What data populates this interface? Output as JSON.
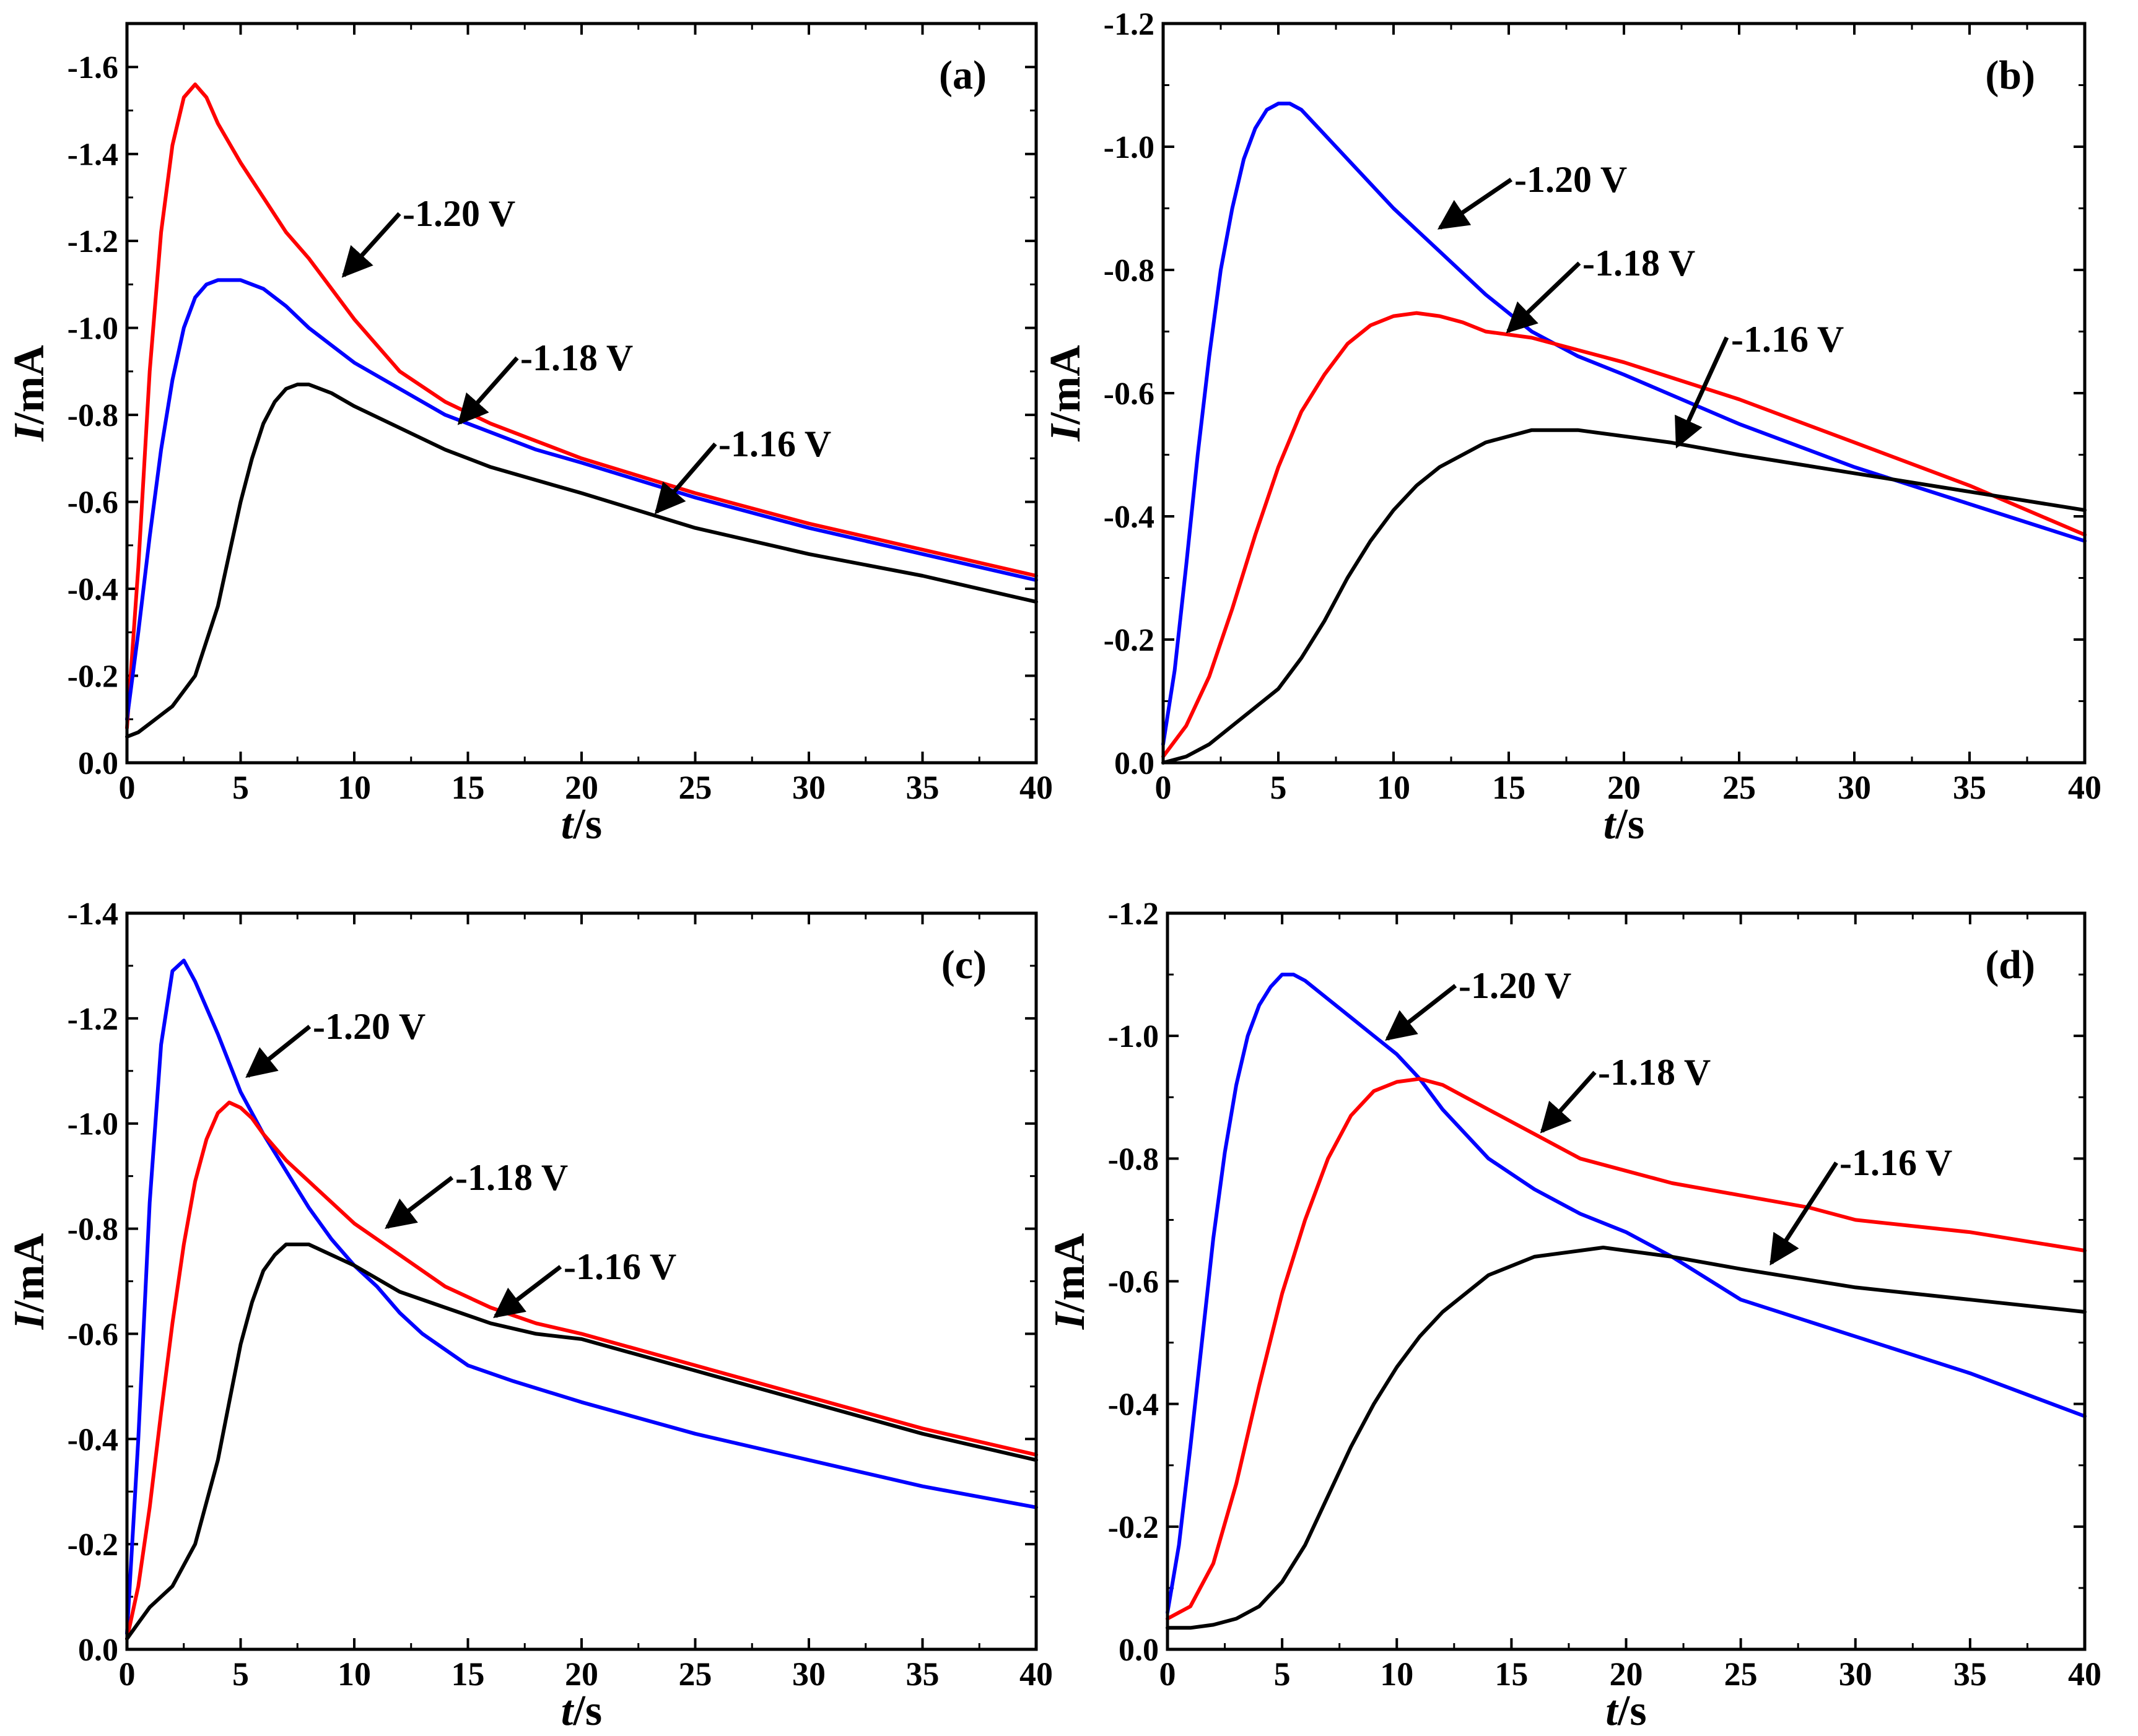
{
  "figure": {
    "description_panels": [
      "a",
      "b",
      "c",
      "d"
    ]
  },
  "colors": {
    "-1.20 V": "#ff0000",
    "-1.18 V": "#0000ff",
    "-1.16 V": "#000000",
    "axis": "#000000"
  },
  "chart_data": [
    {
      "type": "line",
      "panel_label": "(a)",
      "xlabel_italic": "t",
      "xlabel_unit": "/s",
      "ylabel_italic": "I",
      "ylabel_unit": "/mA",
      "xlim": [
        0,
        40
      ],
      "ylim": [
        0.0,
        -1.7
      ],
      "xticks": [
        0,
        5,
        10,
        15,
        20,
        25,
        30,
        35,
        40
      ],
      "yticks": [
        0.0,
        -0.2,
        -0.4,
        -0.6,
        -0.8,
        -1.0,
        -1.2,
        -1.4,
        -1.6
      ],
      "ytick_labels": [
        "0.0",
        "-0.2",
        "-0.4",
        "-0.6",
        "-0.8",
        "-1.0",
        "-1.2",
        "-1.4",
        "-1.6"
      ],
      "series": [
        {
          "name": "-1.20 V",
          "color": "#ff0000",
          "x": [
            0,
            0.5,
            1,
            1.5,
            2,
            2.5,
            3,
            3.5,
            4,
            5,
            6,
            7,
            8,
            9,
            10,
            12,
            14,
            16,
            18,
            20,
            25,
            30,
            35,
            40
          ],
          "y": [
            -0.08,
            -0.45,
            -0.9,
            -1.22,
            -1.42,
            -1.53,
            -1.56,
            -1.53,
            -1.47,
            -1.38,
            -1.3,
            -1.22,
            -1.16,
            -1.09,
            -1.02,
            -0.9,
            -0.83,
            -0.78,
            -0.74,
            -0.7,
            -0.62,
            -0.55,
            -0.49,
            -0.43
          ]
        },
        {
          "name": "-1.18 V",
          "color": "#0000ff",
          "x": [
            0,
            0.5,
            1,
            1.5,
            2,
            2.5,
            3,
            3.5,
            4,
            5,
            6,
            7,
            8,
            9,
            10,
            12,
            14,
            16,
            18,
            20,
            25,
            30,
            35,
            40
          ],
          "y": [
            -0.1,
            -0.3,
            -0.52,
            -0.72,
            -0.88,
            -1.0,
            -1.07,
            -1.1,
            -1.11,
            -1.11,
            -1.09,
            -1.05,
            -1.0,
            -0.96,
            -0.92,
            -0.86,
            -0.8,
            -0.76,
            -0.72,
            -0.69,
            -0.61,
            -0.54,
            -0.48,
            -0.42
          ]
        },
        {
          "name": "-1.16 V",
          "color": "#000000",
          "x": [
            0,
            0.5,
            1,
            2,
            3,
            4,
            4.5,
            5,
            5.5,
            6,
            6.5,
            7,
            7.5,
            8,
            9,
            10,
            12,
            14,
            16,
            18,
            20,
            25,
            30,
            35,
            40
          ],
          "y": [
            -0.06,
            -0.07,
            -0.09,
            -0.13,
            -0.2,
            -0.36,
            -0.48,
            -0.6,
            -0.7,
            -0.78,
            -0.83,
            -0.86,
            -0.87,
            -0.87,
            -0.85,
            -0.82,
            -0.77,
            -0.72,
            -0.68,
            -0.65,
            -0.62,
            -0.54,
            -0.48,
            -0.43,
            -0.37
          ]
        }
      ],
      "annotations": [
        {
          "text": "-1.20 V",
          "target_series": "-1.20 V"
        },
        {
          "text": "-1.18 V",
          "target_series": "-1.18 V"
        },
        {
          "text": "-1.16 V",
          "target_series": "-1.16 V"
        }
      ]
    },
    {
      "type": "line",
      "panel_label": "(b)",
      "xlabel_italic": "t",
      "xlabel_unit": "/s",
      "ylabel_italic": "I",
      "ylabel_unit": "/mA",
      "xlim": [
        0,
        40
      ],
      "ylim": [
        0.0,
        -1.2
      ],
      "xticks": [
        0,
        5,
        10,
        15,
        20,
        25,
        30,
        35,
        40
      ],
      "yticks": [
        0.0,
        -0.2,
        -0.4,
        -0.6,
        -0.8,
        -1.0,
        -1.2
      ],
      "ytick_labels": [
        "0.0",
        "-0.2",
        "-0.4",
        "-0.6",
        "-0.8",
        "-1.0",
        "-1.2"
      ],
      "series": [
        {
          "name": "-1.20 V",
          "color": "#0000ff",
          "x": [
            0,
            0.5,
            1,
            1.5,
            2,
            2.5,
            3,
            3.5,
            4,
            4.5,
            5,
            5.5,
            6,
            7,
            8,
            9,
            10,
            12,
            14,
            16,
            18,
            20,
            25,
            30,
            35,
            40
          ],
          "y": [
            -0.03,
            -0.15,
            -0.32,
            -0.5,
            -0.66,
            -0.8,
            -0.9,
            -0.98,
            -1.03,
            -1.06,
            -1.07,
            -1.07,
            -1.06,
            -1.02,
            -0.98,
            -0.94,
            -0.9,
            -0.83,
            -0.76,
            -0.7,
            -0.66,
            -0.63,
            -0.55,
            -0.48,
            -0.42,
            -0.36
          ]
        },
        {
          "name": "-1.18 V",
          "color": "#ff0000",
          "x": [
            0,
            1,
            2,
            3,
            4,
            5,
            6,
            7,
            8,
            9,
            10,
            11,
            12,
            13,
            14,
            16,
            18,
            20,
            25,
            30,
            35,
            40
          ],
          "y": [
            -0.01,
            -0.06,
            -0.14,
            -0.25,
            -0.37,
            -0.48,
            -0.57,
            -0.63,
            -0.68,
            -0.71,
            -0.725,
            -0.73,
            -0.725,
            -0.715,
            -0.7,
            -0.69,
            -0.67,
            -0.65,
            -0.59,
            -0.52,
            -0.45,
            -0.37
          ]
        },
        {
          "name": "-1.16 V",
          "color": "#000000",
          "x": [
            0,
            1,
            2,
            3,
            4,
            5,
            6,
            7,
            8,
            9,
            10,
            11,
            12,
            14,
            16,
            17,
            18,
            20,
            22,
            25,
            30,
            35,
            40
          ],
          "y": [
            0.0,
            -0.01,
            -0.03,
            -0.06,
            -0.09,
            -0.12,
            -0.17,
            -0.23,
            -0.3,
            -0.36,
            -0.41,
            -0.45,
            -0.48,
            -0.52,
            -0.54,
            -0.54,
            -0.54,
            -0.53,
            -0.52,
            -0.5,
            -0.47,
            -0.44,
            -0.41
          ]
        }
      ],
      "annotations": [
        {
          "text": "-1.20 V",
          "target_series": "-1.20 V"
        },
        {
          "text": "-1.18 V",
          "target_series": "-1.18 V"
        },
        {
          "text": "-1.16 V",
          "target_series": "-1.16 V"
        }
      ]
    },
    {
      "type": "line",
      "panel_label": "(c)",
      "xlabel_italic": "t",
      "xlabel_unit": "/s",
      "ylabel_italic": "I",
      "ylabel_unit": "/mA",
      "xlim": [
        0,
        40
      ],
      "ylim": [
        0.0,
        -1.4
      ],
      "xticks": [
        0,
        5,
        10,
        15,
        20,
        25,
        30,
        35,
        40
      ],
      "yticks": [
        0.0,
        -0.2,
        -0.4,
        -0.6,
        -0.8,
        -1.0,
        -1.2,
        -1.4
      ],
      "ytick_labels": [
        "0.0",
        "-0.2",
        "-0.4",
        "-0.6",
        "-0.8",
        "-1.0",
        "-1.2",
        "-1.4"
      ],
      "series": [
        {
          "name": "-1.20 V",
          "color": "#0000ff",
          "x": [
            0,
            0.5,
            1,
            1.5,
            2,
            2.5,
            3,
            4,
            5,
            6,
            7,
            8,
            9,
            10,
            11,
            12,
            13,
            14,
            15,
            17,
            20,
            25,
            30,
            35,
            40
          ],
          "y": [
            -0.03,
            -0.4,
            -0.85,
            -1.15,
            -1.29,
            -1.31,
            -1.27,
            -1.17,
            -1.06,
            -0.98,
            -0.91,
            -0.84,
            -0.78,
            -0.73,
            -0.69,
            -0.64,
            -0.6,
            -0.57,
            -0.54,
            -0.51,
            -0.47,
            -0.41,
            -0.36,
            -0.31,
            -0.27
          ]
        },
        {
          "name": "-1.18 V",
          "color": "#ff0000",
          "x": [
            0,
            0.5,
            1,
            1.5,
            2,
            2.5,
            3,
            3.5,
            4,
            4.5,
            5,
            5.5,
            6,
            7,
            8,
            9,
            10,
            12,
            14,
            16,
            18,
            20,
            25,
            30,
            35,
            40
          ],
          "y": [
            -0.02,
            -0.12,
            -0.27,
            -0.45,
            -0.62,
            -0.77,
            -0.89,
            -0.97,
            -1.02,
            -1.04,
            -1.03,
            -1.01,
            -0.98,
            -0.93,
            -0.89,
            -0.85,
            -0.81,
            -0.75,
            -0.69,
            -0.65,
            -0.62,
            -0.6,
            -0.54,
            -0.48,
            -0.42,
            -0.37
          ]
        },
        {
          "name": "-1.16 V",
          "color": "#000000",
          "x": [
            0,
            0.5,
            1,
            2,
            3,
            4,
            4.5,
            5,
            5.5,
            6,
            6.5,
            7,
            7.5,
            8,
            9,
            10,
            12,
            14,
            16,
            18,
            20,
            25,
            30,
            35,
            40
          ],
          "y": [
            -0.02,
            -0.05,
            -0.08,
            -0.12,
            -0.2,
            -0.36,
            -0.47,
            -0.58,
            -0.66,
            -0.72,
            -0.75,
            -0.77,
            -0.77,
            -0.77,
            -0.75,
            -0.73,
            -0.68,
            -0.65,
            -0.62,
            -0.6,
            -0.59,
            -0.53,
            -0.47,
            -0.41,
            -0.36
          ]
        }
      ],
      "annotations": [
        {
          "text": "-1.20 V",
          "target_series": "-1.20 V"
        },
        {
          "text": "-1.18 V",
          "target_series": "-1.18 V"
        },
        {
          "text": "-1.16 V",
          "target_series": "-1.16 V"
        }
      ]
    },
    {
      "type": "line",
      "panel_label": "(d)",
      "xlabel_italic": "t",
      "xlabel_unit": "/s",
      "ylabel_italic": "I",
      "ylabel_unit": "/mA",
      "xlim": [
        0,
        40
      ],
      "ylim": [
        0.0,
        -1.2
      ],
      "xticks": [
        0,
        5,
        10,
        15,
        20,
        25,
        30,
        35,
        40
      ],
      "yticks": [
        0.0,
        -0.2,
        -0.4,
        -0.6,
        -0.8,
        -1.0,
        -1.2
      ],
      "ytick_labels": [
        "0.0",
        "-0.2",
        "-0.4",
        "-0.6",
        "-0.8",
        "-1.0",
        "-1.2"
      ],
      "series": [
        {
          "name": "-1.20 V",
          "color": "#0000ff",
          "x": [
            0,
            0.5,
            1,
            1.5,
            2,
            2.5,
            3,
            3.5,
            4,
            4.5,
            5,
            5.5,
            6,
            7,
            8,
            9,
            10,
            11,
            12,
            14,
            16,
            18,
            20,
            22,
            25,
            30,
            35,
            40
          ],
          "y": [
            -0.06,
            -0.17,
            -0.33,
            -0.5,
            -0.67,
            -0.81,
            -0.92,
            -1.0,
            -1.05,
            -1.08,
            -1.1,
            -1.1,
            -1.09,
            -1.06,
            -1.03,
            -1.0,
            -0.97,
            -0.93,
            -0.88,
            -0.8,
            -0.75,
            -0.71,
            -0.68,
            -0.64,
            -0.57,
            -0.51,
            -0.45,
            -0.38
          ]
        },
        {
          "name": "-1.18 V",
          "color": "#ff0000",
          "x": [
            0,
            1,
            2,
            3,
            4,
            5,
            6,
            7,
            8,
            9,
            10,
            11,
            12,
            13,
            14,
            16,
            18,
            20,
            22,
            25,
            28,
            30,
            35,
            40
          ],
          "y": [
            -0.05,
            -0.07,
            -0.14,
            -0.27,
            -0.43,
            -0.58,
            -0.7,
            -0.8,
            -0.87,
            -0.91,
            -0.925,
            -0.93,
            -0.92,
            -0.9,
            -0.88,
            -0.84,
            -0.8,
            -0.78,
            -0.76,
            -0.74,
            -0.72,
            -0.7,
            -0.68,
            -0.65
          ]
        },
        {
          "name": "-1.16 V",
          "color": "#000000",
          "x": [
            0,
            1,
            2,
            3,
            4,
            5,
            6,
            7,
            8,
            9,
            10,
            11,
            12,
            14,
            16,
            18,
            19,
            20,
            22,
            25,
            30,
            35,
            40
          ],
          "y": [
            -0.035,
            -0.035,
            -0.04,
            -0.05,
            -0.07,
            -0.11,
            -0.17,
            -0.25,
            -0.33,
            -0.4,
            -0.46,
            -0.51,
            -0.55,
            -0.61,
            -0.64,
            -0.65,
            -0.655,
            -0.65,
            -0.64,
            -0.62,
            -0.59,
            -0.57,
            -0.55
          ]
        }
      ],
      "annotations": [
        {
          "text": "-1.20 V",
          "target_series": "-1.20 V"
        },
        {
          "text": "-1.18 V",
          "target_series": "-1.18 V"
        },
        {
          "text": "-1.16 V",
          "target_series": "-1.16 V"
        }
      ]
    }
  ]
}
